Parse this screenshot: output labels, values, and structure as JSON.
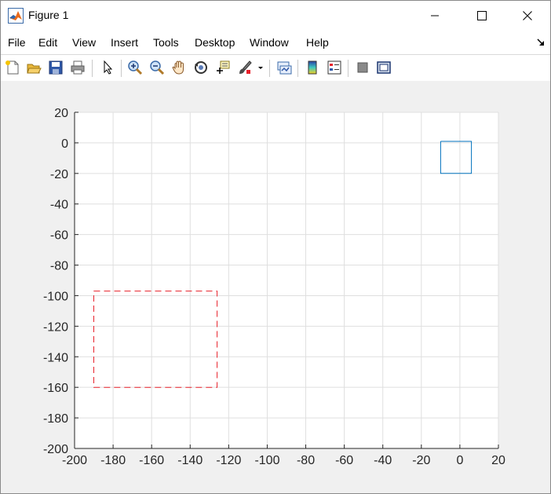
{
  "window": {
    "title": "Figure 1",
    "icons": {
      "app": "matlab-icon",
      "minimize": "minimize-icon",
      "maximize": "maximize-icon",
      "close": "close-icon"
    }
  },
  "menubar": {
    "items": [
      "File",
      "Edit",
      "View",
      "Insert",
      "Tools",
      "Desktop",
      "Window",
      "Help"
    ],
    "dock_icon": "dock-arrow-icon"
  },
  "toolbar": {
    "buttons": [
      "new-figure-icon",
      "open-file-icon",
      "save-icon",
      "print-icon",
      "pointer-icon",
      "zoom-in-icon",
      "zoom-out-icon",
      "pan-icon",
      "rotate-3d-icon",
      "data-cursor-icon",
      "brush-icon",
      "link-plot-icon",
      "colorbar-icon",
      "legend-icon",
      "hide-plot-tools-icon",
      "show-plot-tools-icon"
    ]
  },
  "chart_data": {
    "type": "line",
    "title": "",
    "xlabel": "",
    "ylabel": "",
    "xlim": [
      -200,
      20
    ],
    "ylim": [
      -200,
      20
    ],
    "xticks": [
      -200,
      -180,
      -160,
      -140,
      -120,
      -100,
      -80,
      -60,
      -40,
      -20,
      0,
      20
    ],
    "yticks": [
      20,
      0,
      -20,
      -40,
      -60,
      -80,
      -100,
      -120,
      -140,
      -160,
      -180,
      -200
    ],
    "grid": true,
    "series": [
      {
        "style": "solid",
        "color": "#0072bd",
        "x": [
          -10,
          6,
          6,
          -10,
          -10
        ],
        "y": [
          1,
          1,
          -20,
          -20,
          1
        ]
      },
      {
        "style": "dashed",
        "color": "#e8202a",
        "x": [
          -190,
          -126,
          -126,
          -190,
          -190
        ],
        "y": [
          -97,
          -97,
          -160,
          -160,
          -97
        ]
      }
    ]
  }
}
